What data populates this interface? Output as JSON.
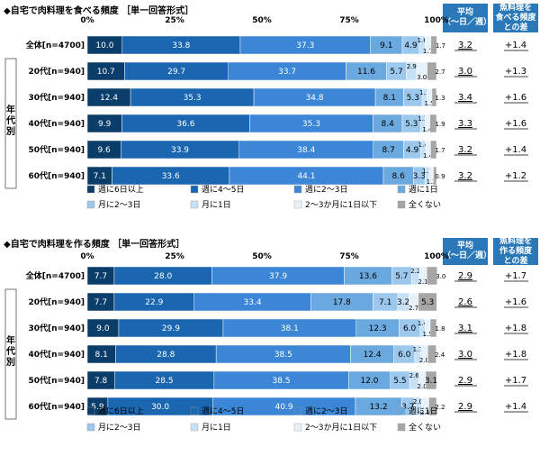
{
  "chart_data": [
    {
      "type": "bar",
      "stacked": true,
      "orientation": "horizontal",
      "title": "◆自宅で肉料理を食べる頻度",
      "subtitle": "［単一回答形式］",
      "x_ticks": [
        "0%",
        "25%",
        "50%",
        "75%",
        "100%"
      ],
      "xlim": [
        0,
        100
      ],
      "group_label": "年代別",
      "categories": [
        "全体[n=4700]",
        "20代[n=940]",
        "30代[n=940]",
        "40代[n=940]",
        "50代[n=940]",
        "60代[n=940]"
      ],
      "series": [
        {
          "name": "週に6日以上",
          "color": "#0b3d6b",
          "values": [
            10.0,
            10.7,
            12.4,
            9.9,
            9.6,
            7.1
          ]
        },
        {
          "name": "週に4～5日",
          "color": "#1a66b0",
          "values": [
            33.8,
            29.7,
            35.3,
            36.6,
            33.9,
            33.6
          ]
        },
        {
          "name": "週に2～3日",
          "color": "#3b86d6",
          "values": [
            37.3,
            33.7,
            34.8,
            35.3,
            38.4,
            44.1
          ]
        },
        {
          "name": "週に1日",
          "color": "#6aa8e0",
          "values": [
            9.1,
            11.6,
            8.1,
            8.4,
            8.7,
            8.6
          ]
        },
        {
          "name": "月に2～3日",
          "color": "#9cc8ee",
          "values": [
            4.9,
            5.7,
            5.3,
            5.3,
            4.9,
            3.3
          ]
        },
        {
          "name": "月に1日",
          "color": "#c6e0f6",
          "values": [
            1.6,
            2.9,
            1.3,
            1.2,
            1.4,
            1.2
          ]
        },
        {
          "name": "2～3か月に1日以下",
          "color": "#e8f2fb",
          "values": [
            1.7,
            3.0,
            1.5,
            1.4,
            1.4,
            1.2
          ]
        },
        {
          "name": "全くない",
          "color": "#a6a6a6",
          "values": [
            1.7,
            2.7,
            1.3,
            1.9,
            1.7,
            0.9
          ]
        }
      ],
      "avg_header": "平均\n（～日／週）",
      "avg_values": [
        "3.2",
        "3.0",
        "3.4",
        "3.3",
        "3.2",
        "3.2"
      ],
      "diff_header": "魚料理を\n食べる頻度\nとの差",
      "diff_values": [
        "+1.4",
        "+1.3",
        "+1.6",
        "+1.6",
        "+1.4",
        "+1.2"
      ]
    },
    {
      "type": "bar",
      "stacked": true,
      "orientation": "horizontal",
      "title": "◆自宅で肉料理を作る頻度",
      "subtitle": "［単一回答形式］",
      "x_ticks": [
        "0%",
        "25%",
        "50%",
        "75%",
        "100%"
      ],
      "xlim": [
        0,
        100
      ],
      "group_label": "年代別",
      "categories": [
        "全体[n=4700]",
        "20代[n=940]",
        "30代[n=940]",
        "40代[n=940]",
        "50代[n=940]",
        "60代[n=940]"
      ],
      "series": [
        {
          "name": "週に6日以上",
          "color": "#0b3d6b",
          "values": [
            7.7,
            7.7,
            9.0,
            8.1,
            7.8,
            5.9
          ]
        },
        {
          "name": "週に4～5日",
          "color": "#1a66b0",
          "values": [
            28.0,
            22.9,
            29.9,
            28.8,
            28.5,
            30.0
          ]
        },
        {
          "name": "週に2～3日",
          "color": "#3b86d6",
          "values": [
            37.9,
            33.4,
            38.1,
            38.5,
            38.5,
            40.9
          ]
        },
        {
          "name": "週に1日",
          "color": "#6aa8e0",
          "values": [
            13.6,
            17.8,
            12.3,
            12.4,
            12.0,
            13.2
          ]
        },
        {
          "name": "月に2～3日",
          "color": "#9cc8ee",
          "values": [
            5.7,
            7.1,
            6.0,
            6.0,
            5.5,
            3.7
          ]
        },
        {
          "name": "月に1日",
          "color": "#c6e0f6",
          "values": [
            2.2,
            3.2,
            1.4,
            1.7,
            2.6,
            2.0
          ]
        },
        {
          "name": "2～3か月に1日以下",
          "color": "#e8f2fb",
          "values": [
            2.1,
            2.7,
            1.5,
            2.0,
            2.0,
            2.1
          ]
        },
        {
          "name": "全くない",
          "color": "#a6a6a6",
          "values": [
            3.0,
            5.3,
            1.8,
            2.4,
            3.1,
            2.2
          ]
        }
      ],
      "avg_header": "平均\n（～日／週）",
      "avg_values": [
        "2.9",
        "2.6",
        "3.1",
        "3.0",
        "2.9",
        "2.9"
      ],
      "diff_header": "魚料理を\n作る頻度\nとの差",
      "diff_values": [
        "+1.7",
        "+1.6",
        "+1.8",
        "+1.8",
        "+1.7",
        "+1.4"
      ]
    }
  ]
}
